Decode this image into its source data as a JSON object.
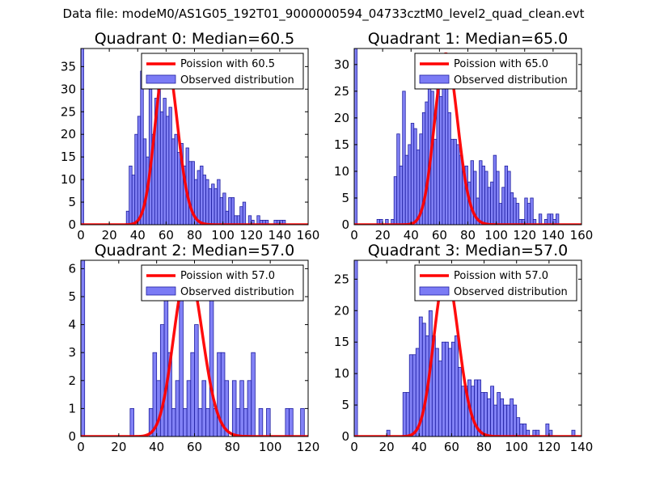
{
  "figure": {
    "suptitle": "Data file: modeM0/AS1G05_192T01_9000000594_04733cztM0_level2_quad_clean.evt"
  },
  "colors": {
    "bar_fill": "#7b7bf5",
    "bar_edge": "#1e1ea0",
    "poisson_line": "#ff0000",
    "axis": "#000000"
  },
  "chart_data": [
    {
      "type": "bar",
      "title": "Quadrant 0: Median=60.5",
      "xlim": [
        0,
        160
      ],
      "ylim": [
        0,
        39
      ],
      "xticks": [
        0,
        20,
        40,
        60,
        80,
        100,
        120,
        140,
        160
      ],
      "yticks": [
        0,
        5,
        10,
        15,
        20,
        25,
        30,
        35
      ],
      "bin_width": 2,
      "bins": [
        [
          0,
          39
        ],
        [
          32,
          3
        ],
        [
          34,
          13
        ],
        [
          36,
          11
        ],
        [
          38,
          20
        ],
        [
          40,
          24
        ],
        [
          42,
          34
        ],
        [
          44,
          19
        ],
        [
          46,
          15
        ],
        [
          48,
          30
        ],
        [
          50,
          20
        ],
        [
          52,
          28
        ],
        [
          54,
          32
        ],
        [
          56,
          25
        ],
        [
          58,
          28
        ],
        [
          60,
          24
        ],
        [
          62,
          26
        ],
        [
          64,
          19
        ],
        [
          66,
          20
        ],
        [
          68,
          16
        ],
        [
          70,
          18
        ],
        [
          72,
          13
        ],
        [
          74,
          17
        ],
        [
          76,
          14
        ],
        [
          78,
          14
        ],
        [
          80,
          10
        ],
        [
          82,
          12
        ],
        [
          84,
          13
        ],
        [
          86,
          11
        ],
        [
          88,
          10
        ],
        [
          90,
          8
        ],
        [
          92,
          9
        ],
        [
          94,
          8
        ],
        [
          96,
          10
        ],
        [
          98,
          6
        ],
        [
          100,
          7
        ],
        [
          102,
          3
        ],
        [
          104,
          6
        ],
        [
          106,
          6
        ],
        [
          108,
          2
        ],
        [
          110,
          2
        ],
        [
          112,
          4
        ],
        [
          114,
          5
        ],
        [
          116,
          0
        ],
        [
          118,
          2
        ],
        [
          120,
          1
        ],
        [
          122,
          0
        ],
        [
          124,
          2
        ],
        [
          126,
          1
        ],
        [
          128,
          1
        ],
        [
          130,
          1
        ],
        [
          132,
          0
        ],
        [
          134,
          0
        ],
        [
          136,
          1
        ],
        [
          138,
          1
        ],
        [
          140,
          1
        ],
        [
          142,
          1
        ]
      ],
      "poisson_mean": 60.5,
      "poisson_peak": 37,
      "legend": {
        "line": "Poission with 60.5",
        "bars": "Observed distribution",
        "loc": "upper right"
      }
    },
    {
      "type": "bar",
      "title": "Quadrant 1: Median=65.0",
      "xlim": [
        0,
        160
      ],
      "ylim": [
        0,
        33
      ],
      "xticks": [
        0,
        20,
        40,
        60,
        80,
        100,
        120,
        140,
        160
      ],
      "yticks": [
        0,
        5,
        10,
        15,
        20,
        25,
        30
      ],
      "bin_width": 2,
      "bins": [
        [
          0,
          33
        ],
        [
          16,
          1
        ],
        [
          18,
          1
        ],
        [
          20,
          0
        ],
        [
          22,
          1
        ],
        [
          24,
          0
        ],
        [
          26,
          1
        ],
        [
          28,
          9
        ],
        [
          30,
          17
        ],
        [
          32,
          11
        ],
        [
          34,
          25
        ],
        [
          36,
          13
        ],
        [
          38,
          15
        ],
        [
          40,
          19
        ],
        [
          42,
          18
        ],
        [
          44,
          14
        ],
        [
          46,
          17
        ],
        [
          48,
          21
        ],
        [
          50,
          23
        ],
        [
          52,
          26
        ],
        [
          54,
          25
        ],
        [
          56,
          16
        ],
        [
          58,
          30
        ],
        [
          60,
          24
        ],
        [
          62,
          28
        ],
        [
          64,
          30
        ],
        [
          66,
          21
        ],
        [
          68,
          16
        ],
        [
          70,
          16
        ],
        [
          72,
          15
        ],
        [
          74,
          13
        ],
        [
          76,
          10
        ],
        [
          78,
          11
        ],
        [
          80,
          8
        ],
        [
          82,
          12
        ],
        [
          84,
          10
        ],
        [
          86,
          5
        ],
        [
          88,
          12
        ],
        [
          90,
          11
        ],
        [
          92,
          10
        ],
        [
          94,
          7
        ],
        [
          96,
          8
        ],
        [
          98,
          13
        ],
        [
          100,
          10
        ],
        [
          102,
          4
        ],
        [
          104,
          7
        ],
        [
          106,
          11
        ],
        [
          108,
          10
        ],
        [
          110,
          6
        ],
        [
          112,
          5
        ],
        [
          114,
          4
        ],
        [
          116,
          1
        ],
        [
          118,
          1
        ],
        [
          120,
          5
        ],
        [
          122,
          4
        ],
        [
          124,
          5
        ],
        [
          126,
          1
        ],
        [
          128,
          0
        ],
        [
          130,
          2
        ],
        [
          132,
          0
        ],
        [
          134,
          1
        ],
        [
          136,
          2
        ],
        [
          138,
          2
        ],
        [
          140,
          1
        ],
        [
          142,
          2
        ]
      ],
      "poisson_mean": 65.0,
      "poisson_peak": 32,
      "legend": {
        "line": "Poission with 65.0",
        "bars": "Observed distribution",
        "loc": "upper right"
      }
    },
    {
      "type": "bar",
      "title": "Quadrant 2: Median=57.0",
      "xlim": [
        0,
        120
      ],
      "ylim": [
        0,
        6.3
      ],
      "xticks": [
        0,
        20,
        40,
        60,
        80,
        100,
        120
      ],
      "yticks": [
        0,
        1,
        2,
        3,
        4,
        5,
        6
      ],
      "bin_width": 2,
      "bins": [
        [
          0,
          6.3
        ],
        [
          26,
          1
        ],
        [
          36,
          1
        ],
        [
          38,
          3
        ],
        [
          40,
          2
        ],
        [
          42,
          4
        ],
        [
          44,
          5
        ],
        [
          46,
          3
        ],
        [
          48,
          1
        ],
        [
          50,
          2
        ],
        [
          52,
          5
        ],
        [
          54,
          1
        ],
        [
          56,
          2
        ],
        [
          58,
          3
        ],
        [
          60,
          4
        ],
        [
          62,
          1
        ],
        [
          64,
          2
        ],
        [
          66,
          1
        ],
        [
          68,
          6
        ],
        [
          70,
          1
        ],
        [
          72,
          3
        ],
        [
          74,
          3
        ],
        [
          76,
          2
        ],
        [
          80,
          2
        ],
        [
          82,
          1
        ],
        [
          84,
          2
        ],
        [
          86,
          1
        ],
        [
          88,
          2
        ],
        [
          90,
          3
        ],
        [
          94,
          1
        ],
        [
          98,
          1
        ],
        [
          108,
          1
        ],
        [
          110,
          1
        ],
        [
          116,
          1
        ]
      ],
      "poisson_mean": 57.0,
      "poisson_peak": 6.0,
      "legend": {
        "line": "Poission with 57.0",
        "bars": "Observed distribution",
        "loc": "upper right"
      }
    },
    {
      "type": "bar",
      "title": "Quadrant 3: Median=57.0",
      "xlim": [
        0,
        140
      ],
      "ylim": [
        0,
        28
      ],
      "xticks": [
        0,
        20,
        40,
        60,
        80,
        100,
        120,
        140
      ],
      "yticks": [
        0,
        5,
        10,
        15,
        20,
        25
      ],
      "bin_width": 2,
      "bins": [
        [
          0,
          28
        ],
        [
          20,
          1
        ],
        [
          30,
          7
        ],
        [
          32,
          7
        ],
        [
          34,
          13
        ],
        [
          36,
          13
        ],
        [
          38,
          14
        ],
        [
          40,
          19
        ],
        [
          42,
          18
        ],
        [
          44,
          16
        ],
        [
          46,
          20
        ],
        [
          48,
          16
        ],
        [
          50,
          14
        ],
        [
          52,
          12
        ],
        [
          54,
          15
        ],
        [
          56,
          15
        ],
        [
          58,
          14
        ],
        [
          60,
          15
        ],
        [
          62,
          16
        ],
        [
          64,
          11
        ],
        [
          66,
          8
        ],
        [
          68,
          8
        ],
        [
          70,
          9
        ],
        [
          72,
          8
        ],
        [
          74,
          9
        ],
        [
          76,
          9
        ],
        [
          78,
          7
        ],
        [
          80,
          7
        ],
        [
          82,
          6
        ],
        [
          84,
          8
        ],
        [
          86,
          5
        ],
        [
          88,
          7
        ],
        [
          90,
          6
        ],
        [
          92,
          5
        ],
        [
          94,
          5
        ],
        [
          96,
          6
        ],
        [
          98,
          5
        ],
        [
          100,
          3
        ],
        [
          102,
          2
        ],
        [
          104,
          2
        ],
        [
          106,
          1
        ],
        [
          110,
          1
        ],
        [
          112,
          1
        ],
        [
          118,
          2
        ],
        [
          120,
          1
        ],
        [
          134,
          1
        ]
      ],
      "poisson_mean": 57.0,
      "poisson_peak": 26,
      "legend": {
        "line": "Poission with 57.0",
        "bars": "Observed distribution",
        "loc": "upper right"
      }
    }
  ]
}
